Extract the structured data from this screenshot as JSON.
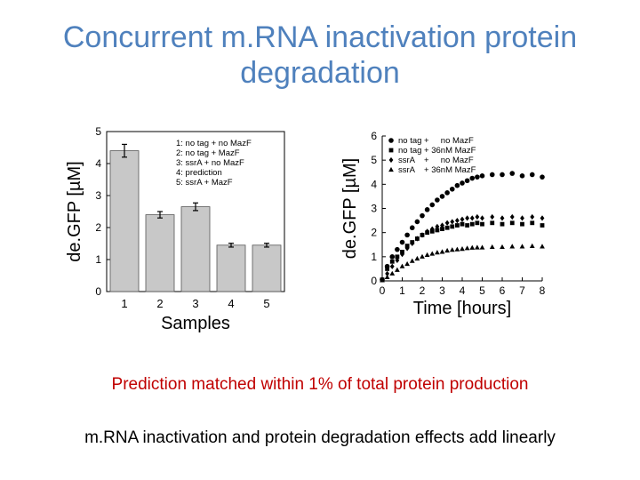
{
  "slide": {
    "title_line1": "Concurrent m.RNA inactivation protein",
    "title_line2": "degradation",
    "caption_1": "Prediction matched within 1% of total protein production",
    "caption_2": "m.RNA inactivation and protein degradation effects add linearly"
  },
  "colors": {
    "title": "#4f81bd",
    "caption_1": "#c00000",
    "caption_2": "#000000",
    "bar_fill": "#c8c8c8"
  },
  "chart_data": [
    {
      "type": "bar",
      "categories": [
        "1",
        "2",
        "3",
        "4",
        "5"
      ],
      "values": [
        4.4,
        2.4,
        2.65,
        1.45,
        1.45
      ],
      "errors": [
        0.2,
        0.1,
        0.12,
        0.06,
        0.06
      ],
      "xlabel": "Samples",
      "ylabel": "de.GFP [µM]",
      "ylim": [
        0,
        5
      ],
      "yticks": [
        0,
        1,
        2,
        3,
        4,
        5
      ],
      "legend": [
        "1: no tag + no MazF",
        "2: no tag + MazF",
        "3: ssrA    + no MazF",
        "4: prediction",
        "5: ssrA    + MazF"
      ],
      "legend_position": "top-right"
    },
    {
      "type": "scatter",
      "xlabel": "Time [hours]",
      "ylabel": "de.GFP [µM]",
      "xlim": [
        0,
        8
      ],
      "ylim": [
        0,
        6
      ],
      "xticks": [
        0,
        1,
        2,
        3,
        4,
        5,
        6,
        7,
        8
      ],
      "yticks": [
        0,
        1,
        2,
        3,
        4,
        5,
        6
      ],
      "legend_position": "top-left",
      "series": [
        {
          "name": "no tag +     no MazF",
          "marker": "circle",
          "x": [
            0,
            0.25,
            0.5,
            0.75,
            1,
            1.25,
            1.5,
            1.75,
            2,
            2.25,
            2.5,
            2.75,
            3,
            3.25,
            3.5,
            3.75,
            4,
            4.25,
            4.5,
            4.75,
            5,
            5.5,
            6,
            6.5,
            7,
            7.5,
            8
          ],
          "y": [
            0.05,
            0.6,
            1.0,
            1.3,
            1.6,
            1.9,
            2.2,
            2.45,
            2.7,
            2.95,
            3.15,
            3.35,
            3.5,
            3.65,
            3.8,
            3.95,
            4.05,
            4.15,
            4.25,
            4.3,
            4.35,
            4.4,
            4.4,
            4.45,
            4.35,
            4.4,
            4.3
          ]
        },
        {
          "name": "no tag + 36nM MazF",
          "marker": "square",
          "x": [
            0,
            0.25,
            0.5,
            0.75,
            1,
            1.25,
            1.5,
            1.75,
            2,
            2.25,
            2.5,
            2.75,
            3,
            3.25,
            3.5,
            3.75,
            4,
            4.25,
            4.5,
            4.75,
            5,
            5.5,
            6,
            6.5,
            7,
            7.5,
            8
          ],
          "y": [
            0.05,
            0.5,
            0.8,
            1.0,
            1.2,
            1.45,
            1.6,
            1.75,
            1.9,
            2.0,
            2.05,
            2.1,
            2.15,
            2.2,
            2.25,
            2.3,
            2.35,
            2.3,
            2.35,
            2.4,
            2.35,
            2.4,
            2.35,
            2.4,
            2.35,
            2.4,
            2.3
          ]
        },
        {
          "name": "ssrA    +     no MazF",
          "marker": "diamond",
          "x": [
            0,
            0.25,
            0.5,
            0.75,
            1,
            1.25,
            1.5,
            1.75,
            2,
            2.25,
            2.5,
            2.75,
            3,
            3.25,
            3.5,
            3.75,
            4,
            4.25,
            4.5,
            4.75,
            5,
            5.5,
            6,
            6.5,
            7,
            7.5,
            8
          ],
          "y": [
            0.05,
            0.3,
            0.6,
            0.85,
            1.1,
            1.35,
            1.55,
            1.75,
            1.9,
            2.05,
            2.15,
            2.25,
            2.3,
            2.4,
            2.45,
            2.5,
            2.55,
            2.6,
            2.6,
            2.65,
            2.6,
            2.65,
            2.6,
            2.65,
            2.6,
            2.65,
            2.6
          ]
        },
        {
          "name": "ssrA    + 36nM MazF",
          "marker": "triangle",
          "x": [
            0,
            0.25,
            0.5,
            0.75,
            1,
            1.25,
            1.5,
            1.75,
            2,
            2.25,
            2.5,
            2.75,
            3,
            3.25,
            3.5,
            3.75,
            4,
            4.25,
            4.5,
            4.75,
            5,
            5.5,
            6,
            6.5,
            7,
            7.5,
            8
          ],
          "y": [
            0.02,
            0.15,
            0.3,
            0.45,
            0.6,
            0.7,
            0.82,
            0.92,
            1.0,
            1.07,
            1.12,
            1.17,
            1.2,
            1.25,
            1.28,
            1.3,
            1.32,
            1.35,
            1.37,
            1.38,
            1.38,
            1.4,
            1.4,
            1.42,
            1.42,
            1.44,
            1.42
          ]
        }
      ]
    }
  ]
}
